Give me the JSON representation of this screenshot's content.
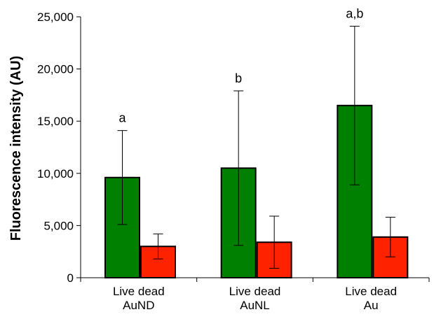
{
  "chart_data": {
    "type": "bar",
    "title": "",
    "xlabel": "",
    "ylabel": "Fluorescence intensity (AU)",
    "ylim": [
      0,
      25000
    ],
    "yticks": [
      0,
      5000,
      10000,
      15000,
      20000,
      25000
    ],
    "ytick_labels": [
      "0",
      "5,000",
      "10,000",
      "15,000",
      "20,000",
      "25,000"
    ],
    "grid": false,
    "legend": "none",
    "categories": [
      [
        "Live dead",
        "AuND"
      ],
      [
        "Live dead",
        "AuNL"
      ],
      [
        "Live dead",
        "Au"
      ]
    ],
    "series": [
      {
        "color": "#008000",
        "values": [
          9600,
          10500,
          16500
        ],
        "error": [
          4500,
          7400,
          7600
        ]
      },
      {
        "color": "#ff2200",
        "values": [
          3000,
          3400,
          3900
        ],
        "error": [
          1200,
          2500,
          1900
        ]
      }
    ],
    "annotations": [
      "a",
      "b",
      "a,b"
    ]
  }
}
